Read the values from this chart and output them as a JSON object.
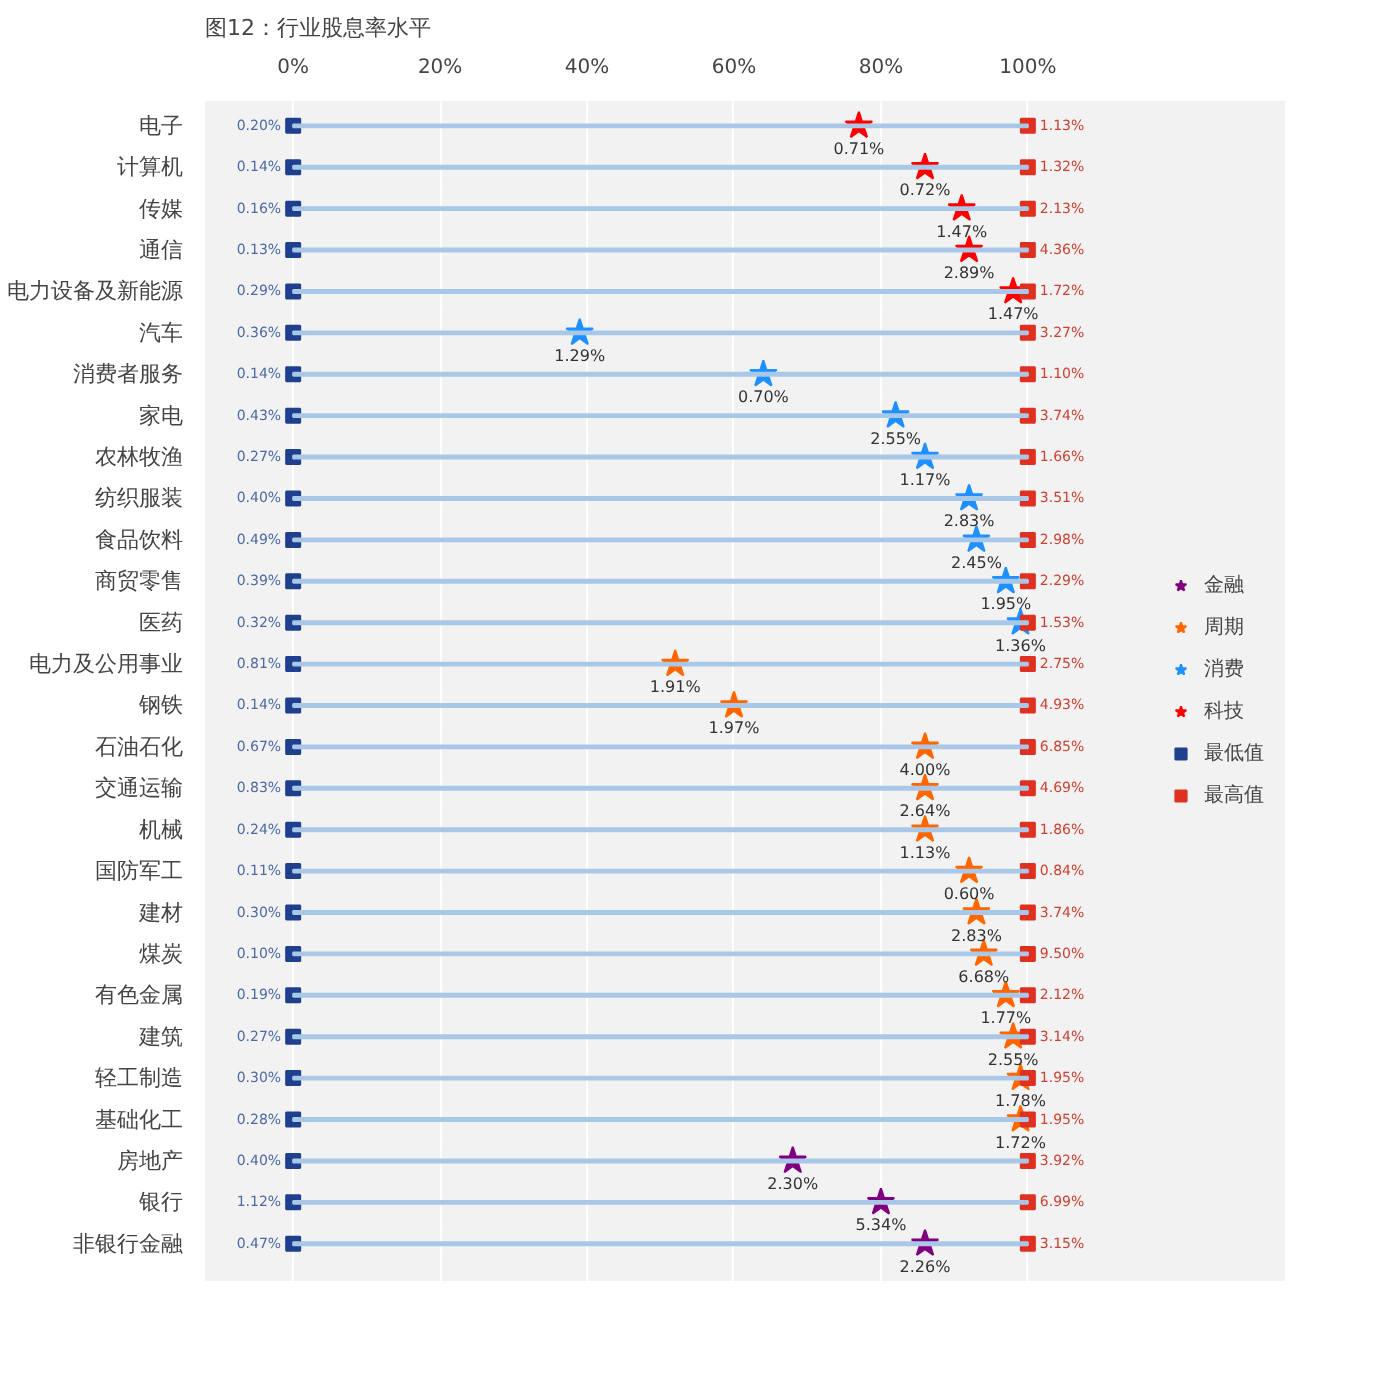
{
  "chart_data": {
    "type": "scatter",
    "title": "图12：行业股息率水平",
    "orientation": "horizontal",
    "categories": [
      "电子",
      "计算机",
      "传媒",
      "通信",
      "电力设备及新能源",
      "汽车",
      "消费者服务",
      "家电",
      "农林牧渔",
      "纺织服装",
      "食品饮料",
      "商贸零售",
      "医药",
      "电力及公用事业",
      "钢铁",
      "石油石化",
      "交通运输",
      "机械",
      "国防军工",
      "建材",
      "煤炭",
      "有色金属",
      "建筑",
      "轻工制造",
      "基础化工",
      "房地产",
      "银行",
      "非银行金融"
    ],
    "xlim": [
      -12,
      135
    ],
    "xticks": [
      {
        "value": 0,
        "label": "0%"
      },
      {
        "value": 20,
        "label": "20%"
      },
      {
        "value": 40,
        "label": "40%"
      },
      {
        "value": 60,
        "label": "60%"
      },
      {
        "value": 80,
        "label": "80%"
      },
      {
        "value": 100,
        "label": "100%"
      }
    ],
    "grid": "x",
    "legend": "right",
    "series": [
      {
        "type": "bar",
        "color": "#a9c8e8",
        "values": [
          100,
          100,
          100,
          100,
          100,
          100,
          100,
          100,
          100,
          100,
          100,
          100,
          100,
          100,
          100,
          100,
          100,
          100,
          100,
          100,
          100,
          100,
          100,
          100,
          100,
          100,
          100,
          100
        ]
      },
      {
        "name": "金融",
        "marker": "star",
        "color": "#800080",
        "values": [
          null,
          null,
          null,
          null,
          null,
          null,
          null,
          null,
          null,
          null,
          null,
          null,
          null,
          null,
          null,
          null,
          null,
          null,
          null,
          null,
          null,
          null,
          null,
          null,
          null,
          68,
          80,
          86
        ]
      },
      {
        "name": "周期",
        "marker": "star",
        "color": "#ff6600",
        "values": [
          null,
          null,
          null,
          null,
          null,
          null,
          null,
          null,
          null,
          null,
          null,
          null,
          null,
          52,
          60,
          86,
          86,
          86,
          92,
          93,
          94,
          97,
          98,
          99,
          99,
          null,
          null,
          null
        ]
      },
      {
        "name": "消费",
        "marker": "star",
        "color": "#1e90ff",
        "values": [
          null,
          null,
          null,
          null,
          null,
          39,
          64,
          82,
          86,
          92,
          93,
          97,
          99,
          null,
          null,
          null,
          null,
          null,
          null,
          null,
          null,
          null,
          null,
          null,
          null,
          null,
          null,
          null
        ]
      },
      {
        "name": "科技",
        "marker": "star",
        "color": "#ff0000",
        "values": [
          77,
          86,
          91,
          92,
          98,
          null,
          null,
          null,
          null,
          null,
          null,
          null,
          null,
          null,
          null,
          null,
          null,
          null,
          null,
          null,
          null,
          null,
          null,
          null,
          null,
          null,
          null,
          null
        ]
      },
      {
        "name": "最低值",
        "marker": "square",
        "color": "#1f3f8f",
        "values": [
          0,
          0,
          0,
          0,
          0,
          0,
          0,
          0,
          0,
          0,
          0,
          0,
          0,
          0,
          0,
          0,
          0,
          0,
          0,
          0,
          0,
          0,
          0,
          0,
          0,
          0,
          0,
          0
        ]
      },
      {
        "name": "最高值",
        "marker": "square",
        "color": "#e03020",
        "values": [
          100,
          100,
          100,
          100,
          100,
          100,
          100,
          100,
          100,
          100,
          100,
          100,
          100,
          100,
          100,
          100,
          100,
          100,
          100,
          100,
          100,
          100,
          100,
          100,
          100,
          100,
          100,
          100
        ]
      }
    ],
    "annotations": [
      {
        "text": "0.71%",
        "x": 77,
        "y": "电子"
      },
      {
        "text": "0.72%",
        "x": 86,
        "y": "计算机"
      },
      {
        "text": "1.47%",
        "x": 91,
        "y": "传媒"
      },
      {
        "text": "2.89%",
        "x": 92,
        "y": "通信"
      },
      {
        "text": "1.47%",
        "x": 98,
        "y": "电力设备及新能源"
      },
      {
        "text": "1.29%",
        "x": 39,
        "y": "汽车"
      },
      {
        "text": "0.70%",
        "x": 64,
        "y": "消费者服务"
      },
      {
        "text": "2.55%",
        "x": 82,
        "y": "家电"
      },
      {
        "text": "1.17%",
        "x": 86,
        "y": "农林牧渔"
      },
      {
        "text": "2.83%",
        "x": 92,
        "y": "纺织服装"
      },
      {
        "text": "2.45%",
        "x": 93,
        "y": "食品饮料"
      },
      {
        "text": "1.95%",
        "x": 97,
        "y": "商贸零售"
      },
      {
        "text": "1.36%",
        "x": 99,
        "y": "医药"
      },
      {
        "text": "1.91%",
        "x": 52,
        "y": "电力及公用事业"
      },
      {
        "text": "1.97%",
        "x": 60,
        "y": "钢铁"
      },
      {
        "text": "4.00%",
        "x": 86,
        "y": "石油石化"
      },
      {
        "text": "2.64%",
        "x": 86,
        "y": "交通运输"
      },
      {
        "text": "1.13%",
        "x": 86,
        "y": "机械"
      },
      {
        "text": "0.60%",
        "x": 92,
        "y": "国防军工"
      },
      {
        "text": "2.83%",
        "x": 93,
        "y": "建材"
      },
      {
        "text": "6.68%",
        "x": 94,
        "y": "煤炭"
      },
      {
        "text": "1.77%",
        "x": 97,
        "y": "有色金属"
      },
      {
        "text": "2.55%",
        "x": 98,
        "y": "建筑"
      },
      {
        "text": "1.78%",
        "x": 99,
        "y": "轻工制造"
      },
      {
        "text": "1.72%",
        "x": 99,
        "y": "基础化工"
      },
      {
        "text": "2.30%",
        "x": 68,
        "y": "房地产"
      },
      {
        "text": "5.34%",
        "x": 80,
        "y": "银行"
      },
      {
        "text": "2.26%",
        "x": 86,
        "y": "非银行金融"
      },
      {
        "text": "0.20%",
        "x": 0,
        "y": "电子"
      },
      {
        "text": "0.14%",
        "x": 0,
        "y": "计算机"
      },
      {
        "text": "0.16%",
        "x": 0,
        "y": "传媒"
      },
      {
        "text": "0.13%",
        "x": 0,
        "y": "通信"
      },
      {
        "text": "0.29%",
        "x": 0,
        "y": "电力设备及新能源"
      },
      {
        "text": "0.36%",
        "x": 0,
        "y": "汽车"
      },
      {
        "text": "0.14%",
        "x": 0,
        "y": "消费者服务"
      },
      {
        "text": "0.43%",
        "x": 0,
        "y": "家电"
      },
      {
        "text": "0.27%",
        "x": 0,
        "y": "农林牧渔"
      },
      {
        "text": "0.40%",
        "x": 0,
        "y": "纺织服装"
      },
      {
        "text": "0.49%",
        "x": 0,
        "y": "食品饮料"
      },
      {
        "text": "0.39%",
        "x": 0,
        "y": "商贸零售"
      },
      {
        "text": "0.32%",
        "x": 0,
        "y": "医药"
      },
      {
        "text": "0.81%",
        "x": 0,
        "y": "电力及公用事业"
      },
      {
        "text": "0.14%",
        "x": 0,
        "y": "钢铁"
      },
      {
        "text": "0.67%",
        "x": 0,
        "y": "石油石化"
      },
      {
        "text": "0.83%",
        "x": 0,
        "y": "交通运输"
      },
      {
        "text": "0.24%",
        "x": 0,
        "y": "机械"
      },
      {
        "text": "0.11%",
        "x": 0,
        "y": "国防军工"
      },
      {
        "text": "0.30%",
        "x": 0,
        "y": "建材"
      },
      {
        "text": "0.10%",
        "x": 0,
        "y": "煤炭"
      },
      {
        "text": "0.19%",
        "x": 0,
        "y": "有色金属"
      },
      {
        "text": "0.27%",
        "x": 0,
        "y": "建筑"
      },
      {
        "text": "0.30%",
        "x": 0,
        "y": "轻工制造"
      },
      {
        "text": "0.28%",
        "x": 0,
        "y": "基础化工"
      },
      {
        "text": "0.40%",
        "x": 0,
        "y": "房地产"
      },
      {
        "text": "1.12%",
        "x": 0,
        "y": "银行"
      },
      {
        "text": "0.47%",
        "x": 0,
        "y": "非银行金融"
      },
      {
        "text": "1.13%",
        "x": 100,
        "y": "电子"
      },
      {
        "text": "1.32%",
        "x": 100,
        "y": "计算机"
      },
      {
        "text": "2.13%",
        "x": 100,
        "y": "传媒"
      },
      {
        "text": "4.36%",
        "x": 100,
        "y": "通信"
      },
      {
        "text": "1.72%",
        "x": 100,
        "y": "电力设备及新能源"
      },
      {
        "text": "3.27%",
        "x": 100,
        "y": "汽车"
      },
      {
        "text": "1.10%",
        "x": 100,
        "y": "消费者服务"
      },
      {
        "text": "3.74%",
        "x": 100,
        "y": "家电"
      },
      {
        "text": "1.66%",
        "x": 100,
        "y": "农林牧渔"
      },
      {
        "text": "3.51%",
        "x": 100,
        "y": "纺织服装"
      },
      {
        "text": "2.98%",
        "x": 100,
        "y": "食品饮料"
      },
      {
        "text": "2.29%",
        "x": 100,
        "y": "商贸零售"
      },
      {
        "text": "1.53%",
        "x": 100,
        "y": "医药"
      },
      {
        "text": "2.75%",
        "x": 100,
        "y": "电力及公用事业"
      },
      {
        "text": "4.93%",
        "x": 100,
        "y": "钢铁"
      },
      {
        "text": "6.85%",
        "x": 100,
        "y": "石油石化"
      },
      {
        "text": "4.69%",
        "x": 100,
        "y": "交通运输"
      },
      {
        "text": "1.86%",
        "x": 100,
        "y": "机械"
      },
      {
        "text": "0.84%",
        "x": 100,
        "y": "国防军工"
      },
      {
        "text": "3.74%",
        "x": 100,
        "y": "建材"
      },
      {
        "text": "9.50%",
        "x": 100,
        "y": "煤炭"
      },
      {
        "text": "2.12%",
        "x": 100,
        "y": "有色金属"
      },
      {
        "text": "3.14%",
        "x": 100,
        "y": "建筑"
      },
      {
        "text": "1.95%",
        "x": 100,
        "y": "轻工制造"
      },
      {
        "text": "1.95%",
        "x": 100,
        "y": "基础化工"
      },
      {
        "text": "3.92%",
        "x": 100,
        "y": "房地产"
      },
      {
        "text": "6.99%",
        "x": 100,
        "y": "银行"
      },
      {
        "text": "3.15%",
        "x": 100,
        "y": "非银行金融"
      }
    ]
  }
}
